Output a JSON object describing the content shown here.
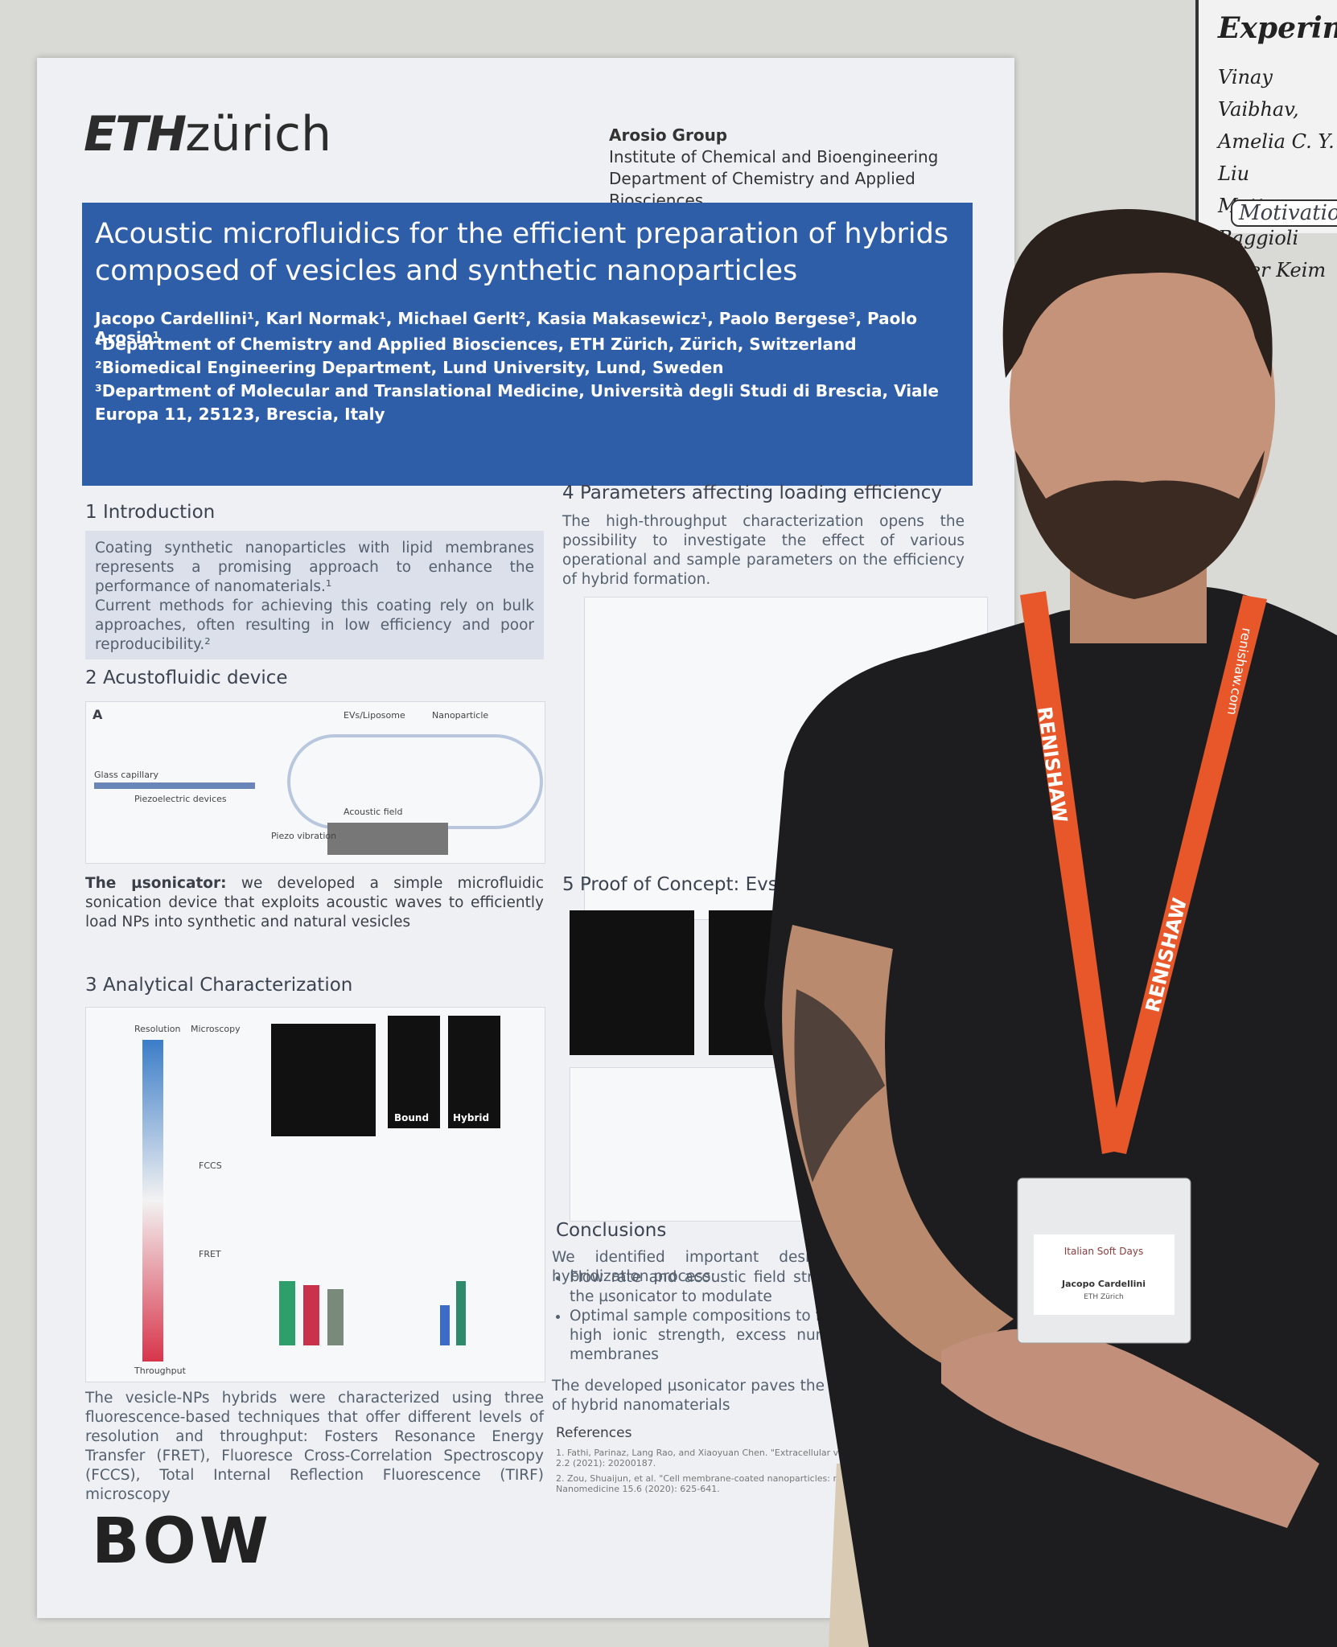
{
  "poster": {
    "logo_bold": "ETH",
    "logo_light": "zürich",
    "group": "Arosio Group",
    "institute": "Institute of Chemical and Bioengineering",
    "department": "Department of Chemistry and Applied Biosciences",
    "title": "Acoustic microfluidics for the efficient preparation of hybrids composed of vesicles and synthetic nanoparticles",
    "authors": "Jacopo Cardellini¹, Karl Normak¹, Michael Gerlt², Kasia Makasewicz¹, Paolo Bergese³, Paolo Arosio¹",
    "affiliations": [
      "¹Department of Chemistry and Applied Biosciences, ETH Zürich, Zürich, Switzerland",
      "²Biomedical Engineering Department, Lund University, Lund, Sweden",
      "³Department of Molecular and Translational Medicine, Università degli Studi di Brescia, Viale Europa 11, 25123, Brescia, Italy"
    ],
    "intro": {
      "heading": "1 Introduction",
      "paragraphs": [
        "Coating synthetic nanoparticles with lipid membranes represents a promising approach to enhance the performance of nanomaterials.¹",
        "Current methods for achieving this coating rely on bulk approaches, often resulting in low efficiency and poor reproducibility.²"
      ]
    },
    "device": {
      "heading": "2 Acustofluidic device",
      "panel": "A",
      "labels": [
        "EVs/Liposome",
        "Nanoparticle",
        "Glass capillary",
        "Piezoelectric devices",
        "Acoustic field",
        "Piezo vibration"
      ],
      "lead": "The µsonicator:",
      "body": "we developed a simple microfluidic sonication device that exploits acoustic waves to efficiently load NPs into synthetic and natural vesicles"
    },
    "characterization": {
      "heading": "3 Analytical Characterization",
      "labels": [
        "Resolution",
        "Microscopy",
        "FCCS",
        "FRET",
        "Throughput",
        "Bound",
        "Hybrid"
      ],
      "body": "The vesicle-NPs hybrids were characterized using three fluorescence-based techniques that offer different levels of resolution and throughput: Fosters Resonance Energy Transfer (FRET), Fluoresce Cross-Correlation Spectroscopy (FCCS), Total Internal Reflection Fluorescence (TIRF) microscopy"
    },
    "parameters": {
      "heading": "4 Parameters affecting loading efficiency",
      "body": "The high-throughput characterization opens the possibility to investigate the effect of various operational and sample parameters on the efficiency of hybrid formation."
    },
    "proof": {
      "heading": "5 Proof of Concept: Evs-NP"
    },
    "conclusions": {
      "heading": "Conclusions",
      "intro": "We identified important design rules for the hybridization process:",
      "bullets": [
        "Flow rate and acoustic field strength parameters of the µsonicator to modulate",
        "Optimal sample compositions to facilitate NPs include high ionic strength, excess num and low-stiffness membranes"
      ],
      "closing": "The developed µsonicator paves the way for production of hybrid nanomaterials"
    },
    "references": {
      "heading": "References",
      "items": [
        "1. Fathi, Parinaz, Lang Rao, and Xiaoyuan Chen. \"Extracellular vesic nanoparticles.\" View 2.2 (2021): 20200187.",
        "2. Zou, Shuaijun, et al. \"Cell membrane-coated nanoparticles: res advances.\" Nanomedicine 15.6 (2020): 625-641."
      ]
    },
    "footer_logo": "BOW"
  },
  "neighbor_poster": {
    "title": "Experimen",
    "authors": [
      "Vinay Vaibhav,",
      "Amelia C. Y. Liu",
      "Matteo Baggioli",
      "Peter Keim (Hei"
    ],
    "section": "Motivatio"
  },
  "lanyard": {
    "brand": "RENISHAW",
    "url": "renishaw.com"
  },
  "badge": {
    "event": "Italian Soft Days",
    "name": "Jacopo Cardellini",
    "affiliation": "ETH Zürich"
  }
}
